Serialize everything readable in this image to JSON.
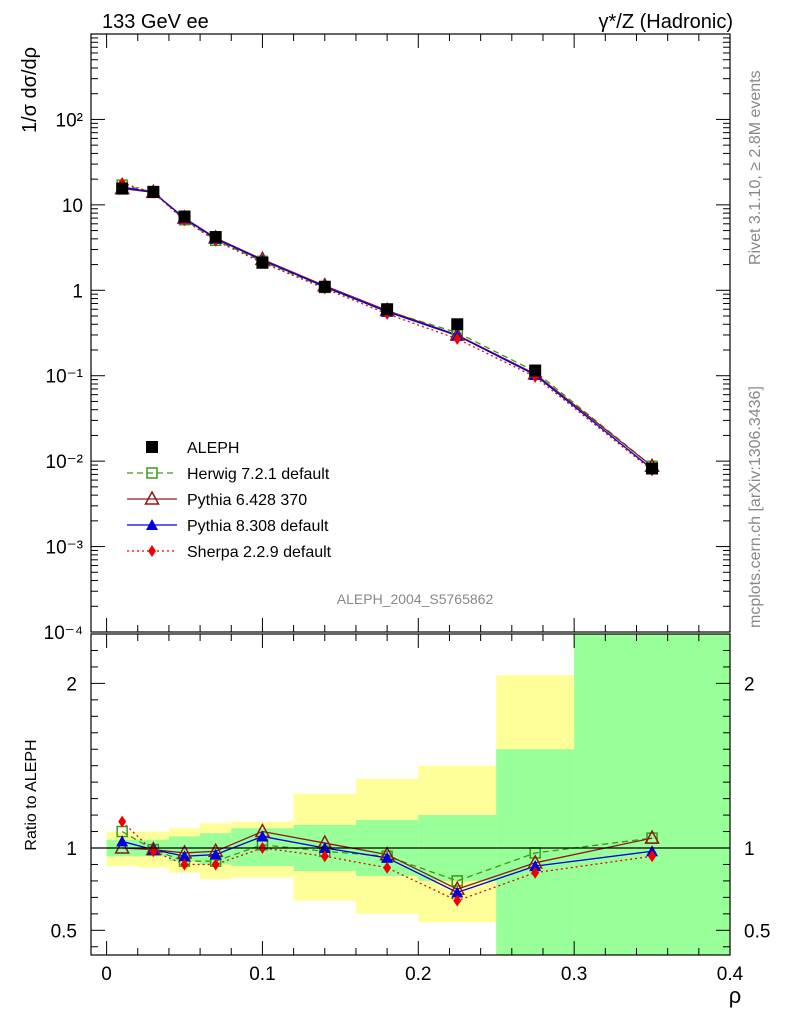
{
  "header": {
    "left": "133 GeV ee",
    "right": "γ*/Z (Hadronic)"
  },
  "side_text": {
    "rivet": "Rivet 3.1.10, ≥ 2.8M events",
    "mcplots": "mcplots.cern.ch [arXiv:1306.3436]"
  },
  "analysis_id": "ALEPH_2004_S5765862",
  "chart_data": [
    {
      "type": "line",
      "ylabel": "1/σ dσ/dρ",
      "y_scale": "log",
      "ylim": [
        0.0001,
        1000
      ],
      "xlim": [
        -0.01,
        0.4
      ],
      "y_ticks": [
        "10⁻⁴",
        "10⁻³",
        "10⁻²",
        "10⁻¹",
        "1",
        "10",
        "10²"
      ],
      "legend_position": "bottom-left",
      "x": [
        0.01,
        0.03,
        0.05,
        0.07,
        0.1,
        0.14,
        0.18,
        0.225,
        0.275,
        0.35
      ],
      "series": [
        {
          "name": "ALEPH",
          "color": "#000000",
          "marker": "square-filled",
          "line": "none",
          "values": [
            15.5,
            14.2,
            7.3,
            4.2,
            2.1,
            1.1,
            0.6,
            0.4,
            0.115,
            0.0082
          ]
        },
        {
          "name": "Herwig 7.2.1 default",
          "color": "#3a9a1a",
          "marker": "square-open",
          "line": "dashed",
          "values": [
            17.0,
            14.1,
            6.7,
            3.85,
            2.18,
            1.08,
            0.57,
            0.32,
            0.112,
            0.0087
          ]
        },
        {
          "name": "Pythia 6.428 370",
          "color": "#8b1a1a",
          "marker": "triangle-open",
          "line": "solid",
          "values": [
            15.5,
            14.0,
            7.0,
            4.1,
            2.3,
            1.13,
            0.58,
            0.3,
            0.105,
            0.0087
          ]
        },
        {
          "name": "Pythia 8.308 default",
          "color": "#0000dd",
          "marker": "triangle-filled",
          "line": "solid",
          "values": [
            16.2,
            14.0,
            6.95,
            4.0,
            2.25,
            1.1,
            0.56,
            0.295,
            0.102,
            0.0081
          ]
        },
        {
          "name": "Sherpa 2.2.9 default",
          "color": "#ee0000",
          "marker": "diamond-filled",
          "line": "dotted",
          "values": [
            18.0,
            13.9,
            6.6,
            3.8,
            2.1,
            1.05,
            0.53,
            0.27,
            0.097,
            0.0078
          ]
        }
      ]
    },
    {
      "type": "line",
      "xlabel": "ρ",
      "ylabel": "Ratio to ALEPH",
      "ylim": [
        0.35,
        2.3
      ],
      "xlim": [
        -0.01,
        0.4
      ],
      "x_ticks": [
        "0",
        "0.1",
        "0.2",
        "0.3",
        "0.4"
      ],
      "y_ticks": [
        "0.5",
        "1",
        "2"
      ],
      "bands": [
        {
          "x0": 0.0,
          "x1": 0.02,
          "y1": [
            0.95,
            1.05
          ],
          "y2": [
            0.89,
            1.1
          ]
        },
        {
          "x0": 0.02,
          "x1": 0.04,
          "y1": [
            0.95,
            1.05
          ],
          "y2": [
            0.88,
            1.1
          ]
        },
        {
          "x0": 0.04,
          "x1": 0.06,
          "y1": [
            0.92,
            1.07
          ],
          "y2": [
            0.85,
            1.12
          ]
        },
        {
          "x0": 0.06,
          "x1": 0.08,
          "y1": [
            0.9,
            1.09
          ],
          "y2": [
            0.81,
            1.15
          ]
        },
        {
          "x0": 0.08,
          "x1": 0.12,
          "y1": [
            0.89,
            1.12
          ],
          "y2": [
            0.82,
            1.16
          ]
        },
        {
          "x0": 0.12,
          "x1": 0.16,
          "y1": [
            0.86,
            1.14
          ],
          "y2": [
            0.68,
            1.33
          ]
        },
        {
          "x0": 0.16,
          "x1": 0.2,
          "y1": [
            0.83,
            1.17
          ],
          "y2": [
            0.6,
            1.42
          ]
        },
        {
          "x0": 0.2,
          "x1": 0.25,
          "y1": [
            0.8,
            1.2
          ],
          "y2": [
            0.55,
            1.5
          ]
        },
        {
          "x0": 0.25,
          "x1": 0.3,
          "y1": [
            0.35,
            1.6
          ],
          "y2": [
            0.35,
            2.05
          ]
        },
        {
          "x0": 0.3,
          "x1": 0.4,
          "y1": [
            0.35,
            2.3
          ],
          "y2": [
            0.35,
            2.3
          ]
        }
      ],
      "x": [
        0.01,
        0.03,
        0.05,
        0.07,
        0.1,
        0.14,
        0.18,
        0.225,
        0.275,
        0.35
      ],
      "series": [
        {
          "name": "Herwig 7.2.1 default",
          "color": "#3a9a1a",
          "marker": "square-open",
          "line": "dashed",
          "values": [
            1.1,
            0.99,
            0.92,
            0.92,
            1.02,
            0.98,
            0.95,
            0.8,
            0.97,
            1.06
          ]
        },
        {
          "name": "Pythia 6.428 370",
          "color": "#8b1a1a",
          "marker": "triangle-open",
          "line": "solid",
          "values": [
            1.0,
            0.99,
            0.97,
            0.98,
            1.1,
            1.03,
            0.96,
            0.75,
            0.91,
            1.06
          ]
        },
        {
          "name": "Pythia 8.308 default",
          "color": "#0000dd",
          "marker": "triangle-filled",
          "line": "solid",
          "values": [
            1.04,
            0.99,
            0.95,
            0.96,
            1.07,
            1.0,
            0.94,
            0.73,
            0.89,
            0.98
          ]
        },
        {
          "name": "Sherpa 2.2.9 default",
          "color": "#ee0000",
          "marker": "diamond-filled",
          "line": "dotted",
          "values": [
            1.16,
            0.98,
            0.9,
            0.9,
            1.0,
            0.95,
            0.88,
            0.68,
            0.85,
            0.95
          ]
        }
      ]
    }
  ]
}
